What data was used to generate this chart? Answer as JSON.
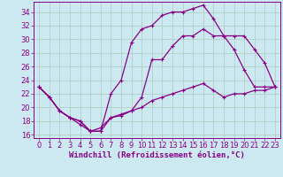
{
  "xlabel": "Windchill (Refroidissement éolien,°C)",
  "bg_color": "#cce8f0",
  "grid_color": "#aaccbb",
  "line_color": "#880088",
  "xlim": [
    -0.5,
    23.5
  ],
  "ylim": [
    15.5,
    35.5
  ],
  "yticks": [
    16,
    18,
    20,
    22,
    24,
    26,
    28,
    30,
    32,
    34
  ],
  "xticks": [
    0,
    1,
    2,
    3,
    4,
    5,
    6,
    7,
    8,
    9,
    10,
    11,
    12,
    13,
    14,
    15,
    16,
    17,
    18,
    19,
    20,
    21,
    22,
    23
  ],
  "series1_x": [
    0,
    1,
    2,
    3,
    4,
    5,
    6,
    7,
    8,
    9,
    10,
    11,
    12,
    13,
    14,
    15,
    16,
    17,
    18,
    19,
    20,
    21,
    22,
    23
  ],
  "series1_y": [
    23.0,
    21.5,
    19.5,
    18.5,
    18.0,
    16.5,
    16.5,
    18.5,
    18.8,
    19.5,
    20.0,
    21.0,
    21.5,
    22.0,
    22.5,
    23.0,
    23.5,
    22.5,
    21.5,
    22.0,
    22.0,
    22.5,
    22.5,
    23.0
  ],
  "series2_x": [
    0,
    1,
    2,
    3,
    4,
    5,
    6,
    7,
    8,
    9,
    10,
    11,
    12,
    13,
    14,
    15,
    16,
    17,
    18,
    19,
    20,
    21,
    22,
    23
  ],
  "series2_y": [
    23.0,
    21.5,
    19.5,
    18.5,
    18.0,
    16.5,
    16.5,
    22.0,
    24.0,
    29.5,
    31.5,
    32.0,
    33.5,
    34.0,
    34.0,
    34.5,
    35.0,
    33.0,
    30.5,
    28.5,
    25.5,
    23.0,
    23.0,
    23.0
  ],
  "series3_x": [
    0,
    1,
    2,
    3,
    4,
    5,
    6,
    7,
    8,
    9,
    10,
    11,
    12,
    13,
    14,
    15,
    16,
    17,
    18,
    19,
    20,
    21,
    22,
    23
  ],
  "series3_y": [
    23.0,
    21.5,
    19.5,
    18.5,
    17.5,
    16.5,
    17.0,
    18.5,
    19.0,
    19.5,
    21.5,
    27.0,
    27.0,
    29.0,
    30.5,
    30.5,
    31.5,
    30.5,
    30.5,
    30.5,
    30.5,
    28.5,
    26.5,
    23.0
  ],
  "xlabel_fontsize": 6.5,
  "tick_fontsize": 6.0,
  "line_width": 0.9,
  "marker_size": 3.0
}
